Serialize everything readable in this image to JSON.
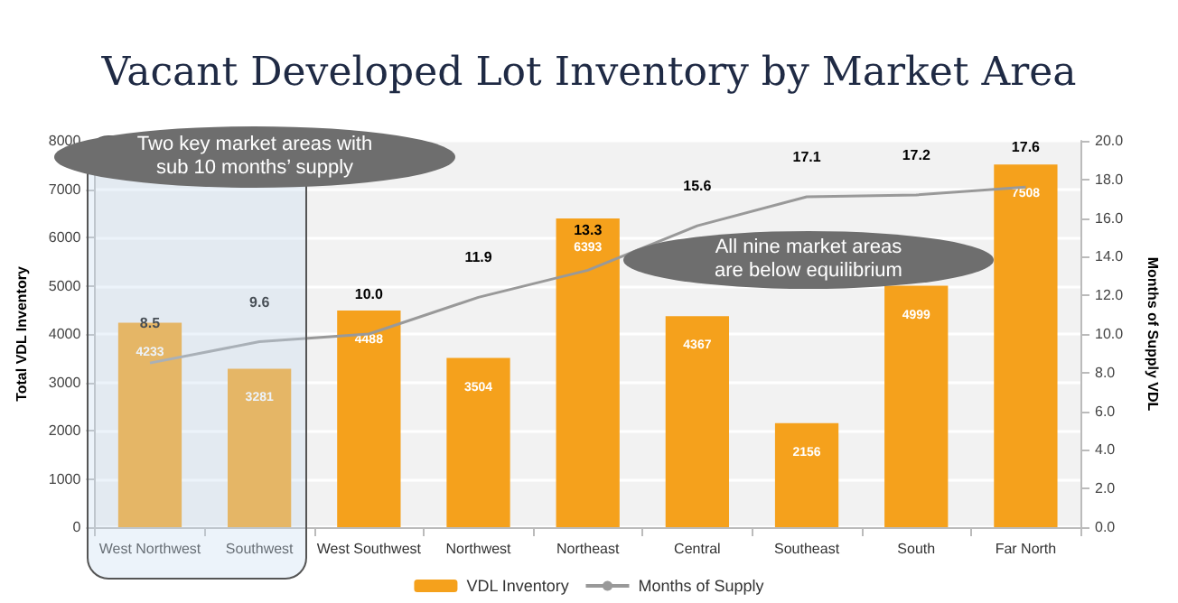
{
  "chart_data": {
    "type": "bar",
    "title": "Vacant Developed Lot Inventory by Market Area",
    "categories": [
      "West Northwest",
      "Southwest",
      "West Southwest",
      "Northwest",
      "Northeast",
      "Central",
      "Southeast",
      "South",
      "Far North"
    ],
    "series": [
      {
        "name": "VDL Inventory",
        "color": "#f5a11c",
        "values": [
          4233,
          3281,
          4488,
          3504,
          6393,
          4367,
          2156,
          4999,
          7508
        ]
      },
      {
        "name": "Months of Supply",
        "type": "line",
        "axis": "y2",
        "color": "#999999",
        "values": [
          8.5,
          9.6,
          10.0,
          11.9,
          13.3,
          15.6,
          17.1,
          17.2,
          17.6
        ],
        "value_labels": [
          "8.5",
          "9.6",
          "10.0",
          "11.9",
          "13.3",
          "15.6",
          "17.1",
          "17.2",
          "17.6"
        ]
      }
    ],
    "ylabel": "Total VDL Inventory",
    "y2label": "Months of Supply VDL",
    "ylim": [
      0,
      8000
    ],
    "yticks": [
      0,
      1000,
      2000,
      3000,
      4000,
      5000,
      6000,
      7000,
      8000
    ],
    "y2lim": [
      0,
      20
    ],
    "y2ticks": [
      {
        "value": 0,
        "label": "0.0"
      },
      {
        "value": 2,
        "label": "2.0"
      },
      {
        "value": 4,
        "label": "4.0"
      },
      {
        "value": 6,
        "label": "6.0"
      },
      {
        "value": 8,
        "label": "8.0"
      },
      {
        "value": 10,
        "label": "10.0"
      },
      {
        "value": 12,
        "label": "12.0"
      },
      {
        "value": 14,
        "label": "14.0"
      },
      {
        "value": 16,
        "label": "16.0"
      },
      {
        "value": 18,
        "label": "18.0"
      },
      {
        "value": 20,
        "label": "20.0"
      }
    ],
    "data_labels": true,
    "grid": "y",
    "legend": "bottom",
    "marker": "none",
    "line_style": "solid",
    "annotations": [
      "Two key market areas with sub 10 months’ supply",
      "All nine market areas are below equilibrium"
    ]
  }
}
